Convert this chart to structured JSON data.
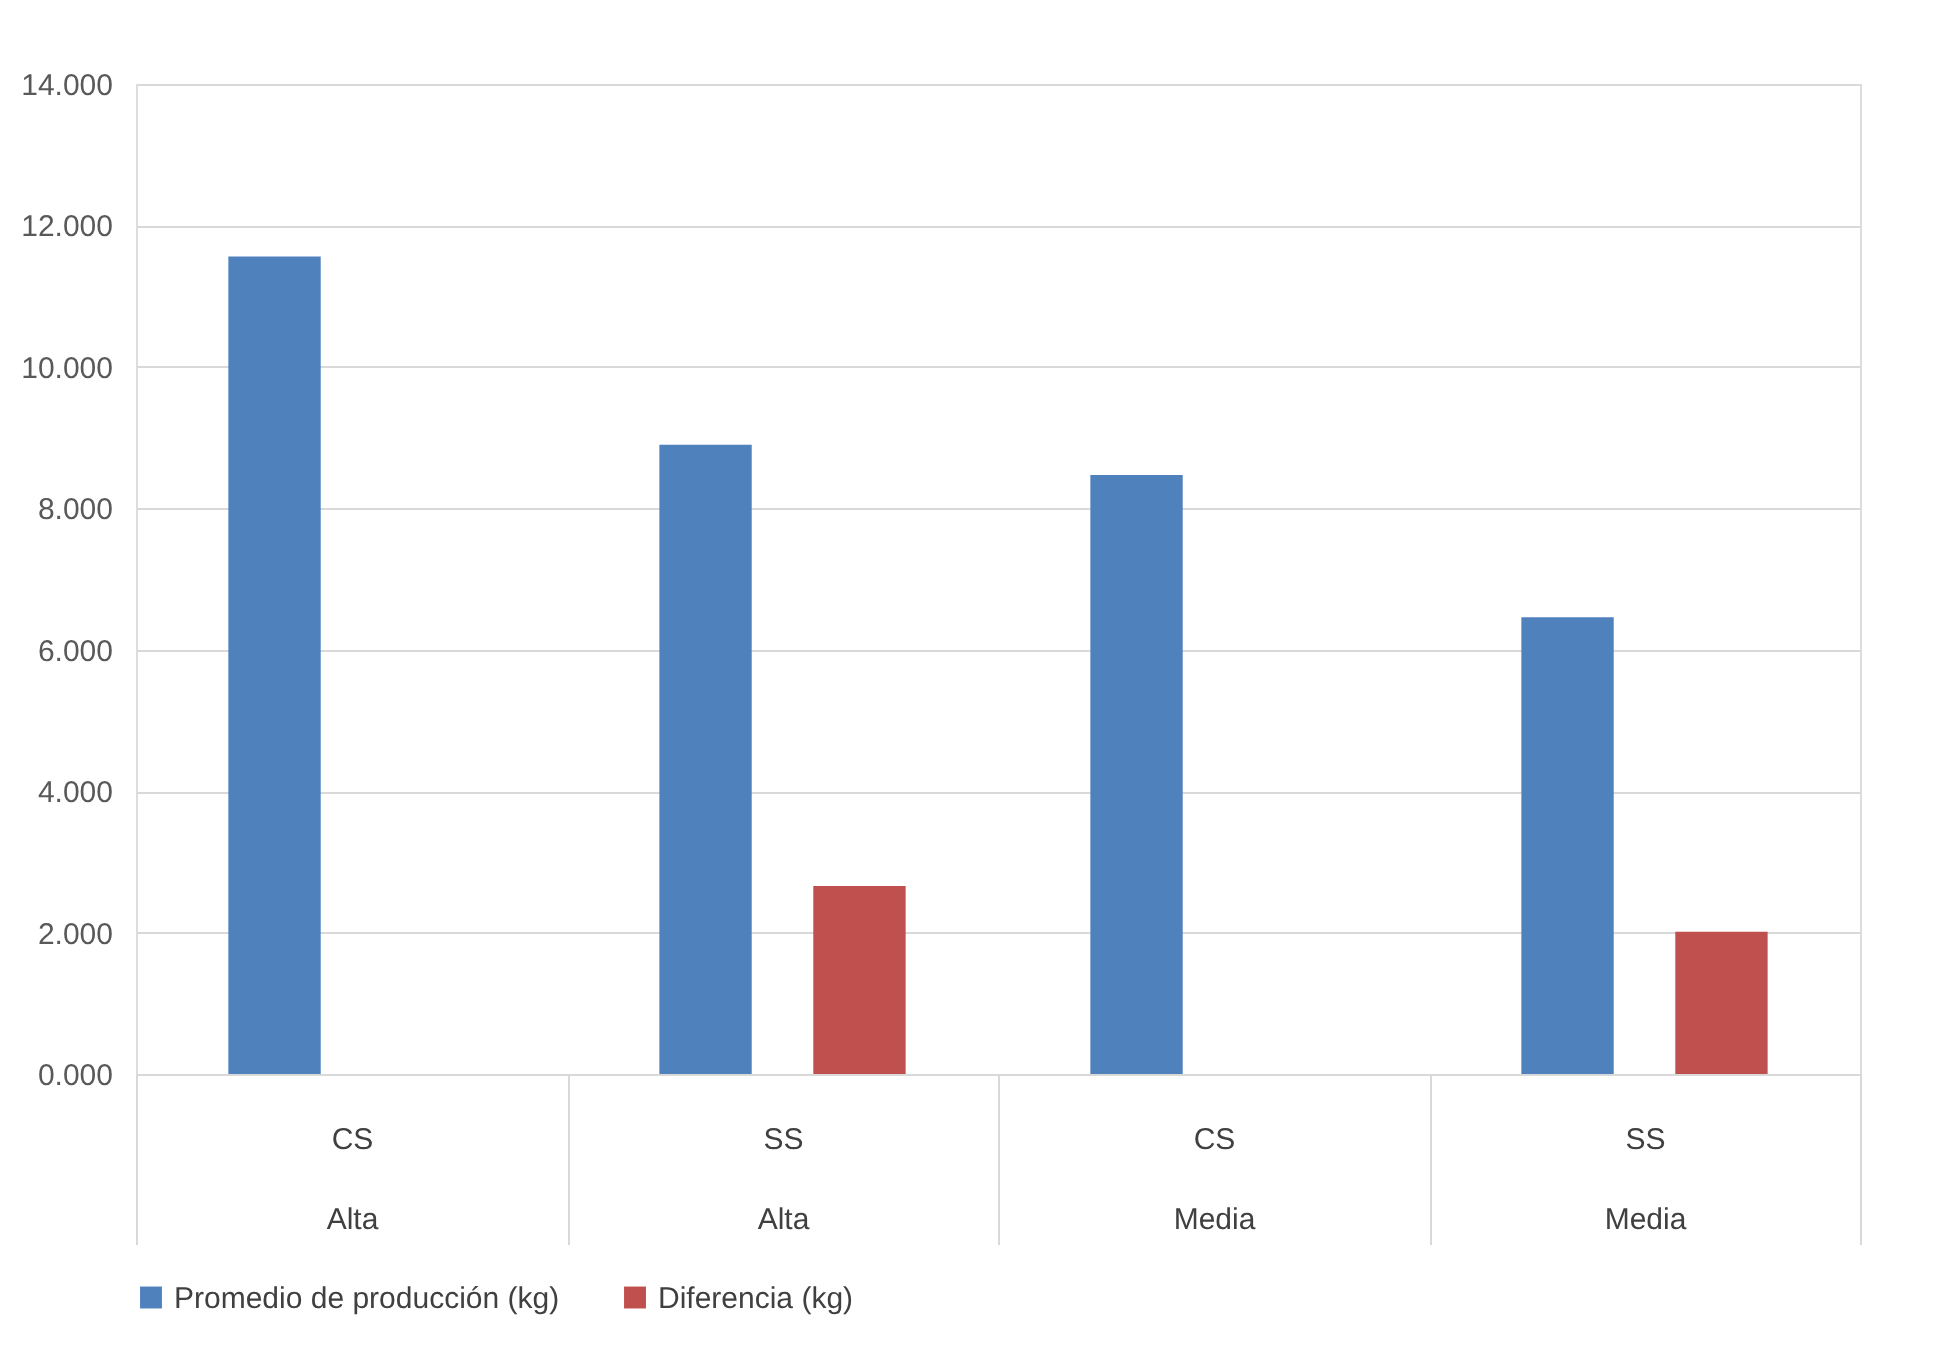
{
  "chart_data": {
    "type": "bar",
    "categories": [
      "CS\nAlta",
      "SS\nAlta",
      "CS\nMedia",
      "SS\nMedia"
    ],
    "series": [
      {
        "name": "Promedio de producción (kg)",
        "color": "#4f81bd",
        "values": [
          11.56,
          8.9,
          8.47,
          6.46
        ]
      },
      {
        "name": "Diferencia (kg)",
        "color": "#c0504d",
        "values": [
          null,
          2.66,
          null,
          2.01
        ]
      }
    ],
    "ylim": [
      0,
      14
    ],
    "yticks": [
      {
        "value": 0,
        "label": "0.000"
      },
      {
        "value": 2,
        "label": "2.000"
      },
      {
        "value": 4,
        "label": "4.000"
      },
      {
        "value": 6,
        "label": "6.000"
      },
      {
        "value": 8,
        "label": "8.000"
      },
      {
        "value": 10,
        "label": "10.000"
      },
      {
        "value": 12,
        "label": "12.000"
      },
      {
        "value": 14,
        "label": "14.000"
      }
    ],
    "grid": "y",
    "legend": "bottom"
  }
}
